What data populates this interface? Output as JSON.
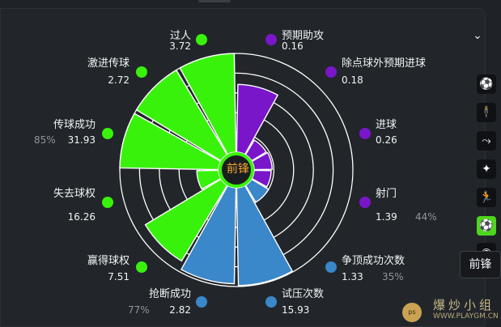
{
  "position_label": "前锋",
  "tooltip_text": "前锋",
  "watermark": {
    "text": "爆炒小组",
    "sub": "WWW.PLAYGM.CN",
    "ball_text": "ps"
  },
  "colors": {
    "attack": "#7a16c9",
    "possession": "#39f20c",
    "defense": "#3a87c9"
  },
  "chart_data": {
    "type": "polar-bar",
    "metrics": [
      {
        "label": "预期助攻",
        "value": "0.16",
        "group": "attack",
        "norm": 0.67
      },
      {
        "label": "除点球外预期进球",
        "value": "0.18",
        "group": "attack",
        "norm": 0.13
      },
      {
        "label": "进球",
        "value": "0.26",
        "group": "attack",
        "norm": 0.14
      },
      {
        "label": "射门",
        "value": "1.39",
        "group": "attack",
        "norm": 0.13,
        "pct": "44%"
      },
      {
        "label": "争顶成功次数",
        "value": "1.33",
        "group": "defense",
        "norm": 0.16,
        "pct": "35%"
      },
      {
        "label": "试压次数",
        "value": "15.93",
        "group": "defense",
        "norm": 0.99
      },
      {
        "label": "抢断成功",
        "value": "2.82",
        "group": "defense",
        "norm": 0.97,
        "pct": "77%"
      },
      {
        "label": "赢得球权",
        "value": "7.51",
        "group": "possession",
        "norm": 0.89
      },
      {
        "label": "失去球权",
        "value": "16.26",
        "group": "possession",
        "norm": 0.18
      },
      {
        "label": "传球成功",
        "value": "31.93",
        "group": "possession",
        "norm": 1.0,
        "pct": "85%"
      },
      {
        "label": "激进传球",
        "value": "2.72",
        "group": "possession",
        "norm": 1.0
      },
      {
        "label": "过人",
        "value": "3.72",
        "group": "possession",
        "norm": 1.0
      }
    ]
  },
  "side_icons": [
    "kick-icon",
    "stand-icon",
    "slide-icon",
    "dribble-icon",
    "runner-icon",
    "striker-icon",
    "whistle-icon"
  ]
}
